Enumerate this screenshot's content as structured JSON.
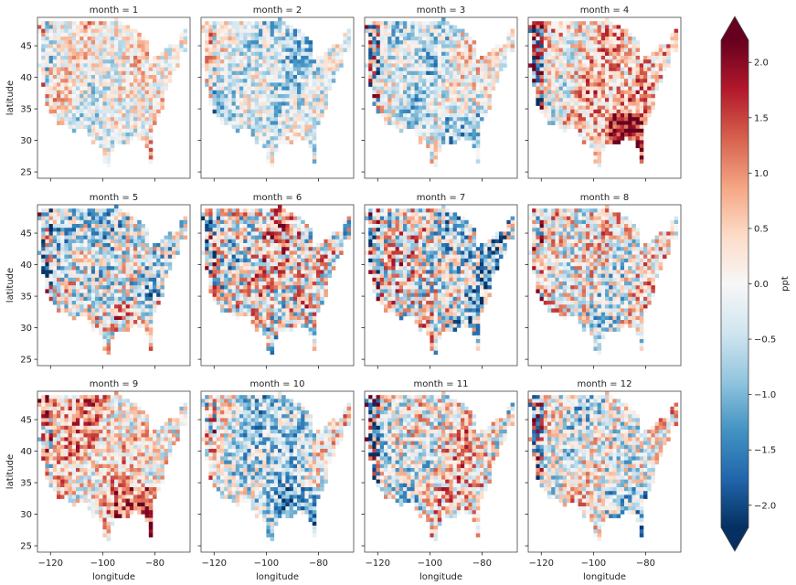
{
  "chart_data": {
    "type": "heatmap",
    "facet_variable": "month",
    "facet_values": [
      1,
      2,
      3,
      4,
      5,
      6,
      7,
      8,
      9,
      10,
      11,
      12
    ],
    "panel_titles": [
      "month = 1",
      "month = 2",
      "month = 3",
      "month = 4",
      "month = 5",
      "month = 6",
      "month = 7",
      "month = 8",
      "month = 9",
      "month = 10",
      "month = 11",
      "month = 12"
    ],
    "xlabel": "longitude",
    "ylabel": "latitude",
    "xlim": [
      -125,
      -66.5
    ],
    "ylim": [
      24,
      49.5
    ],
    "xticks": [
      -120,
      -100,
      -80
    ],
    "xtick_labels": [
      "−120",
      "−100",
      "−80"
    ],
    "yticks": [
      25,
      30,
      35,
      40,
      45
    ],
    "ytick_labels": [
      "25",
      "30",
      "35",
      "40",
      "45"
    ],
    "colorbar": {
      "label": "ppt",
      "vmin": -2.2,
      "vmax": 2.2,
      "extend": "both",
      "colormap": "RdBu_r",
      "ticks": [
        -2.0,
        -1.5,
        -1.0,
        -0.5,
        0.0,
        0.5,
        1.0,
        1.5,
        2.0
      ],
      "tick_labels": [
        "−2.0",
        "−1.5",
        "−1.0",
        "−0.5",
        "0.0",
        "0.5",
        "1.0",
        "1.5",
        "2.0"
      ]
    },
    "grid": false
  },
  "colors": {
    "colormap_stops": [
      "#053061",
      "#2166ac",
      "#4393c3",
      "#92c5de",
      "#d1e5f0",
      "#f7f7f7",
      "#fddbc7",
      "#f4a582",
      "#d6604d",
      "#b2182b",
      "#67001f"
    ],
    "axes_edge": "#444444",
    "text": "#222222"
  }
}
